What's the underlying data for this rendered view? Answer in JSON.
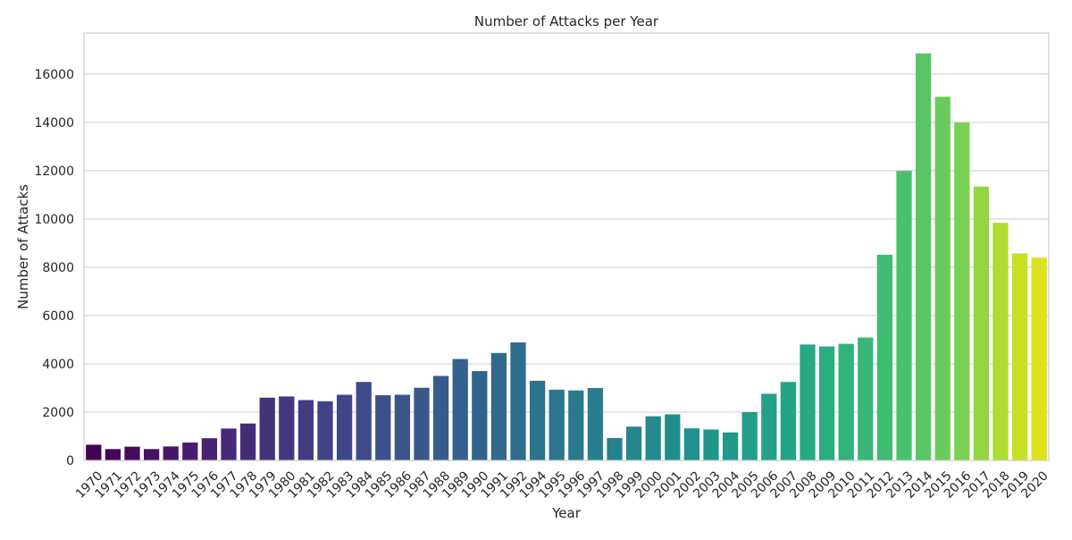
{
  "chart_data": {
    "type": "bar",
    "title": "Number of Attacks per Year",
    "xlabel": "Year",
    "ylabel": "Number of Attacks",
    "ylim": [
      0,
      17700
    ],
    "yticks": [
      0,
      2000,
      4000,
      6000,
      8000,
      10000,
      12000,
      14000,
      16000
    ],
    "grid": "horizontal",
    "palette": "viridis",
    "categories": [
      "1970",
      "1971",
      "1972",
      "1973",
      "1974",
      "1975",
      "1976",
      "1977",
      "1978",
      "1979",
      "1980",
      "1981",
      "1982",
      "1983",
      "1984",
      "1985",
      "1986",
      "1987",
      "1988",
      "1989",
      "1990",
      "1991",
      "1992",
      "1994",
      "1995",
      "1996",
      "1997",
      "1998",
      "1999",
      "2000",
      "2001",
      "2002",
      "2003",
      "2004",
      "2005",
      "2006",
      "2007",
      "2008",
      "2009",
      "2010",
      "2011",
      "2012",
      "2013",
      "2014",
      "2015",
      "2016",
      "2017",
      "2018",
      "2019",
      "2020"
    ],
    "values": [
      650,
      470,
      570,
      470,
      580,
      740,
      920,
      1320,
      1530,
      2600,
      2650,
      2500,
      2450,
      2720,
      3250,
      2700,
      2720,
      3010,
      3500,
      4200,
      3700,
      4450,
      4890,
      3300,
      2930,
      2900,
      3000,
      930,
      1400,
      1830,
      1910,
      1330,
      1280,
      1160,
      2000,
      2760,
      3250,
      4800,
      4720,
      4830,
      5090,
      8520,
      11990,
      16860,
      15060,
      14000,
      11340,
      9840,
      8570,
      8400
    ]
  }
}
